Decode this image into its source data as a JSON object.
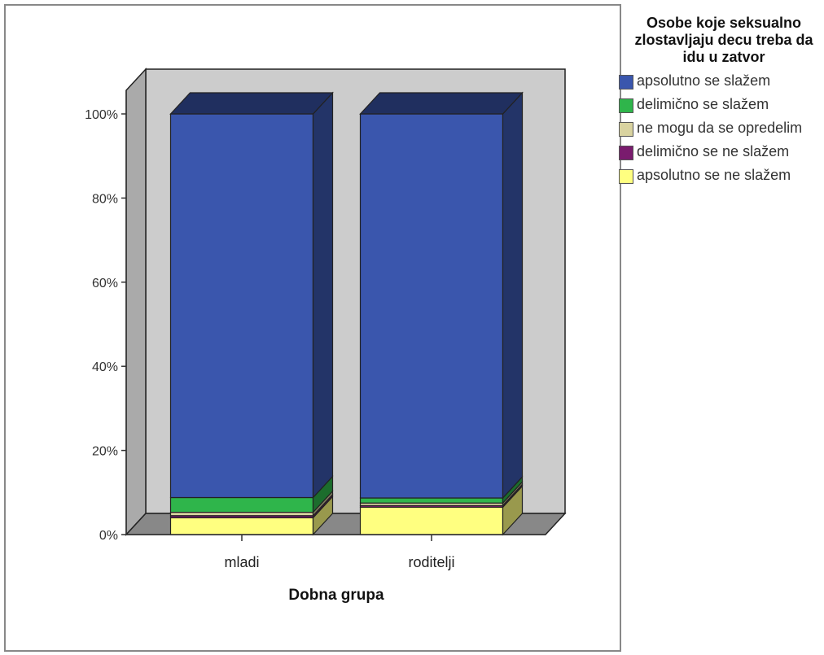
{
  "chart_data": {
    "type": "bar",
    "stacked": true,
    "percent": true,
    "categories": [
      "mladi",
      "roditelji"
    ],
    "xlabel": "Dobna grupa",
    "ylabel": "",
    "ylim": [
      0,
      100
    ],
    "yticks": [
      "0%",
      "20%",
      "40%",
      "60%",
      "80%",
      "100%"
    ],
    "legend_title": "Osobe koje seksualno zlostavljaju decu treba da idu u zatvor",
    "legend_position": "right",
    "series": [
      {
        "name": "apsolutno se ne slažem",
        "color": "#ffff80",
        "values": [
          4.0,
          6.5
        ]
      },
      {
        "name": "delimično se ne slažem",
        "color": "#7a1b6e",
        "values": [
          0.5,
          0.4
        ]
      },
      {
        "name": "ne mogu da se opredelim",
        "color": "#d9d3a0",
        "values": [
          0.8,
          0.6
        ]
      },
      {
        "name": "delimično se slažem",
        "color": "#2fb54b",
        "values": [
          3.5,
          1.2
        ]
      },
      {
        "name": "apsolutno se slažem",
        "color": "#3a56ad",
        "values": [
          91.2,
          91.3
        ]
      }
    ],
    "legend_order": [
      "apsolutno se slažem",
      "delimično se slažem",
      "ne mogu da se opredelim",
      "delimično se ne slažem",
      "apsolutno se ne slažem"
    ]
  }
}
